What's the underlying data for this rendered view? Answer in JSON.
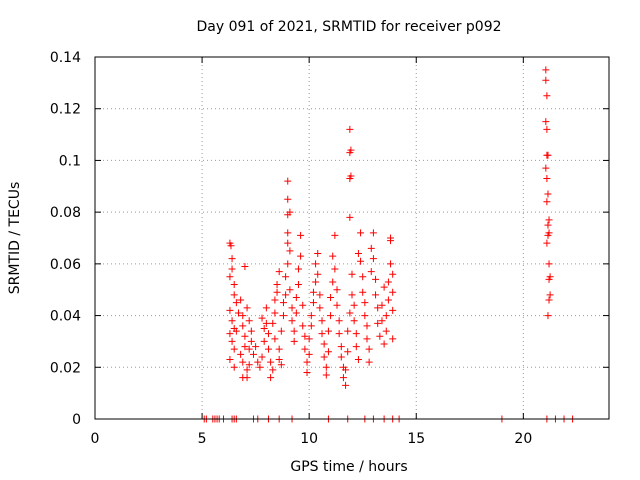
{
  "chart_data": {
    "type": "scatter",
    "title": "Day 091 of 2021, SRMTID for receiver p092",
    "xlabel": "GPS time / hours",
    "ylabel": "SRMTID / TECUs",
    "xlim": [
      0,
      24
    ],
    "ylim": [
      0,
      0.14
    ],
    "xticks": [
      0,
      5,
      10,
      15,
      20
    ],
    "yticks": [
      0,
      0.02,
      0.04,
      0.06,
      0.08,
      0.1,
      0.12,
      0.14
    ],
    "xtick_labels": [
      "0",
      "5",
      "10",
      "15",
      "20"
    ],
    "ytick_labels": [
      "0",
      "0.02",
      "0.04",
      "0.06",
      "0.08",
      "0.1",
      "0.12",
      "0.14"
    ],
    "grid": true,
    "marker": "+",
    "color": "#ff0000",
    "series": [
      {
        "name": "SRMTID",
        "points": [
          [
            5.1,
            0
          ],
          [
            5.2,
            0
          ],
          [
            5.5,
            0
          ],
          [
            5.6,
            0
          ],
          [
            5.7,
            0
          ],
          [
            5.8,
            0
          ],
          [
            6.0,
            0
          ],
          [
            6.4,
            0
          ],
          [
            6.5,
            0
          ],
          [
            6.6,
            0
          ],
          [
            7.4,
            0
          ],
          [
            7.6,
            0
          ],
          [
            8.1,
            0
          ],
          [
            8.6,
            0
          ],
          [
            9.2,
            0
          ],
          [
            10.9,
            0
          ],
          [
            11.8,
            0
          ],
          [
            12.6,
            0
          ],
          [
            13.0,
            0
          ],
          [
            13.5,
            0
          ],
          [
            13.9,
            0
          ],
          [
            14.2,
            0
          ],
          [
            19.0,
            0
          ],
          [
            21.1,
            0
          ],
          [
            21.5,
            0
          ],
          [
            21.9,
            0
          ],
          [
            22.3,
            0
          ],
          [
            6.3,
            0.068
          ],
          [
            6.35,
            0.067
          ],
          [
            6.4,
            0.062
          ],
          [
            6.4,
            0.058
          ],
          [
            6.3,
            0.055
          ],
          [
            6.5,
            0.052
          ],
          [
            6.5,
            0.048
          ],
          [
            6.6,
            0.045
          ],
          [
            6.3,
            0.042
          ],
          [
            6.4,
            0.038
          ],
          [
            6.5,
            0.035
          ],
          [
            6.3,
            0.033
          ],
          [
            6.4,
            0.03
          ],
          [
            6.5,
            0.027
          ],
          [
            6.3,
            0.023
          ],
          [
            6.5,
            0.02
          ],
          [
            6.6,
            0.034
          ],
          [
            6.7,
            0.041
          ],
          [
            6.8,
            0.046
          ],
          [
            6.9,
            0.04
          ],
          [
            6.9,
            0.036
          ],
          [
            7.0,
            0.032
          ],
          [
            7.0,
            0.028
          ],
          [
            6.8,
            0.025
          ],
          [
            6.9,
            0.022
          ],
          [
            7.1,
            0.019
          ],
          [
            6.9,
            0.016
          ],
          [
            7.1,
            0.016
          ],
          [
            7.2,
            0.021
          ],
          [
            7.0,
            0.059
          ],
          [
            7.1,
            0.043
          ],
          [
            7.2,
            0.038
          ],
          [
            7.3,
            0.034
          ],
          [
            7.3,
            0.03
          ],
          [
            7.2,
            0.027
          ],
          [
            7.4,
            0.025
          ],
          [
            7.5,
            0.028
          ],
          [
            7.6,
            0.022
          ],
          [
            7.7,
            0.02
          ],
          [
            7.8,
            0.024
          ],
          [
            7.9,
            0.03
          ],
          [
            7.9,
            0.035
          ],
          [
            7.8,
            0.039
          ],
          [
            8.0,
            0.043
          ],
          [
            8.0,
            0.037
          ],
          [
            8.1,
            0.033
          ],
          [
            8.1,
            0.027
          ],
          [
            8.2,
            0.022
          ],
          [
            8.3,
            0.019
          ],
          [
            8.2,
            0.016
          ],
          [
            8.4,
            0.041
          ],
          [
            8.4,
            0.046
          ],
          [
            8.5,
            0.049
          ],
          [
            8.5,
            0.052
          ],
          [
            8.6,
            0.057
          ],
          [
            8.3,
            0.037
          ],
          [
            8.4,
            0.031
          ],
          [
            8.6,
            0.027
          ],
          [
            8.6,
            0.023
          ],
          [
            8.7,
            0.021
          ],
          [
            8.7,
            0.034
          ],
          [
            8.8,
            0.04
          ],
          [
            8.8,
            0.045
          ],
          [
            8.9,
            0.048
          ],
          [
            8.9,
            0.055
          ],
          [
            9.0,
            0.06
          ],
          [
            9.0,
            0.068
          ],
          [
            9.0,
            0.072
          ],
          [
            9.0,
            0.079
          ],
          [
            9.0,
            0.085
          ],
          [
            9.0,
            0.092
          ],
          [
            9.1,
            0.08
          ],
          [
            9.1,
            0.065
          ],
          [
            9.1,
            0.05
          ],
          [
            9.2,
            0.043
          ],
          [
            9.2,
            0.038
          ],
          [
            9.3,
            0.034
          ],
          [
            9.3,
            0.03
          ],
          [
            9.4,
            0.041
          ],
          [
            9.4,
            0.047
          ],
          [
            9.5,
            0.052
          ],
          [
            9.5,
            0.058
          ],
          [
            9.6,
            0.063
          ],
          [
            9.6,
            0.071
          ],
          [
            9.7,
            0.044
          ],
          [
            9.7,
            0.036
          ],
          [
            9.8,
            0.032
          ],
          [
            9.8,
            0.027
          ],
          [
            9.9,
            0.022
          ],
          [
            9.9,
            0.018
          ],
          [
            10.0,
            0.025
          ],
          [
            10.0,
            0.031
          ],
          [
            10.1,
            0.036
          ],
          [
            10.1,
            0.04
          ],
          [
            10.2,
            0.045
          ],
          [
            10.2,
            0.049
          ],
          [
            10.3,
            0.053
          ],
          [
            10.3,
            0.06
          ],
          [
            10.4,
            0.064
          ],
          [
            10.4,
            0.056
          ],
          [
            10.5,
            0.048
          ],
          [
            10.5,
            0.043
          ],
          [
            10.6,
            0.038
          ],
          [
            10.6,
            0.033
          ],
          [
            10.7,
            0.029
          ],
          [
            10.7,
            0.024
          ],
          [
            10.8,
            0.02
          ],
          [
            10.8,
            0.017
          ],
          [
            10.9,
            0.026
          ],
          [
            10.9,
            0.034
          ],
          [
            11.0,
            0.04
          ],
          [
            11.0,
            0.047
          ],
          [
            11.1,
            0.053
          ],
          [
            11.1,
            0.063
          ],
          [
            11.2,
            0.071
          ],
          [
            11.2,
            0.058
          ],
          [
            11.3,
            0.05
          ],
          [
            11.3,
            0.044
          ],
          [
            11.4,
            0.038
          ],
          [
            11.4,
            0.033
          ],
          [
            11.5,
            0.028
          ],
          [
            11.5,
            0.024
          ],
          [
            11.6,
            0.02
          ],
          [
            11.6,
            0.016
          ],
          [
            11.7,
            0.013
          ],
          [
            11.7,
            0.019
          ],
          [
            11.8,
            0.026
          ],
          [
            11.8,
            0.034
          ],
          [
            11.9,
            0.041
          ],
          [
            11.9,
            0.078
          ],
          [
            11.9,
            0.093
          ],
          [
            11.95,
            0.094
          ],
          [
            11.9,
            0.103
          ],
          [
            11.95,
            0.104
          ],
          [
            11.9,
            0.112
          ],
          [
            12.0,
            0.056
          ],
          [
            12.0,
            0.048
          ],
          [
            12.1,
            0.044
          ],
          [
            12.1,
            0.038
          ],
          [
            12.2,
            0.033
          ],
          [
            12.2,
            0.028
          ],
          [
            12.3,
            0.023
          ],
          [
            12.3,
            0.064
          ],
          [
            12.4,
            0.072
          ],
          [
            12.4,
            0.061
          ],
          [
            12.5,
            0.055
          ],
          [
            12.5,
            0.049
          ],
          [
            12.6,
            0.045
          ],
          [
            12.6,
            0.04
          ],
          [
            12.7,
            0.036
          ],
          [
            12.7,
            0.031
          ],
          [
            12.8,
            0.027
          ],
          [
            12.8,
            0.022
          ],
          [
            12.9,
            0.057
          ],
          [
            12.9,
            0.066
          ],
          [
            13.0,
            0.072
          ],
          [
            13.0,
            0.062
          ],
          [
            13.1,
            0.054
          ],
          [
            13.1,
            0.048
          ],
          [
            13.2,
            0.043
          ],
          [
            13.2,
            0.037
          ],
          [
            13.3,
            0.032
          ],
          [
            13.4,
            0.038
          ],
          [
            13.4,
            0.044
          ],
          [
            13.5,
            0.051
          ],
          [
            13.5,
            0.029
          ],
          [
            13.6,
            0.034
          ],
          [
            13.6,
            0.04
          ],
          [
            13.7,
            0.046
          ],
          [
            13.7,
            0.053
          ],
          [
            13.8,
            0.06
          ],
          [
            13.8,
            0.069
          ],
          [
            13.8,
            0.07
          ],
          [
            13.9,
            0.056
          ],
          [
            13.9,
            0.049
          ],
          [
            13.9,
            0.042
          ],
          [
            13.9,
            0.031
          ],
          [
            21.05,
            0.135
          ],
          [
            21.05,
            0.131
          ],
          [
            21.1,
            0.125
          ],
          [
            21.05,
            0.115
          ],
          [
            21.1,
            0.112
          ],
          [
            21.1,
            0.102
          ],
          [
            21.15,
            0.102
          ],
          [
            21.05,
            0.097
          ],
          [
            21.1,
            0.093
          ],
          [
            21.15,
            0.087
          ],
          [
            21.1,
            0.084
          ],
          [
            21.2,
            0.077
          ],
          [
            21.15,
            0.075
          ],
          [
            21.2,
            0.072
          ],
          [
            21.15,
            0.071
          ],
          [
            21.1,
            0.068
          ],
          [
            21.2,
            0.06
          ],
          [
            21.25,
            0.055
          ],
          [
            21.2,
            0.054
          ],
          [
            21.25,
            0.048
          ],
          [
            21.2,
            0.046
          ],
          [
            21.15,
            0.04
          ]
        ]
      }
    ]
  }
}
